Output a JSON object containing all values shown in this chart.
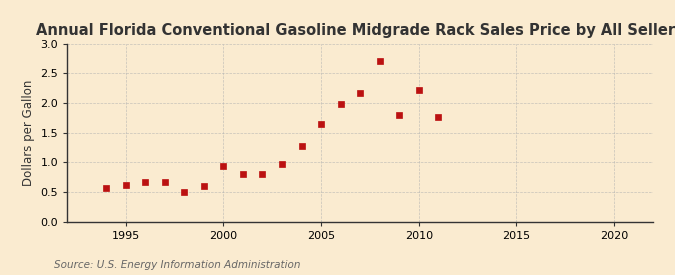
{
  "title": "Annual Florida Conventional Gasoline Midgrade Rack Sales Price by All Sellers",
  "ylabel": "Dollars per Gallon",
  "source": "Source: U.S. Energy Information Administration",
  "background_color": "#faebd0",
  "outer_background": "#f5e6c8",
  "years": [
    1994,
    1995,
    1996,
    1997,
    1998,
    1999,
    2000,
    2001,
    2002,
    2003,
    2004,
    2005,
    2006,
    2007,
    2008,
    2009,
    2010,
    2011
  ],
  "values": [
    0.57,
    0.62,
    0.67,
    0.67,
    0.5,
    0.61,
    0.93,
    0.81,
    0.8,
    0.98,
    1.28,
    1.65,
    1.99,
    2.17,
    2.7,
    1.8,
    2.21,
    1.76
  ],
  "marker_color": "#bb1111",
  "marker_size": 4,
  "xlim": [
    1992,
    2022
  ],
  "ylim": [
    0.0,
    3.0
  ],
  "xticks": [
    1995,
    2000,
    2005,
    2010,
    2015,
    2020
  ],
  "yticks": [
    0.0,
    0.5,
    1.0,
    1.5,
    2.0,
    2.5,
    3.0
  ],
  "title_fontsize": 10.5,
  "label_fontsize": 8.5,
  "tick_fontsize": 8,
  "source_fontsize": 7.5,
  "grid_color": "#b0b0b0",
  "spine_color": "#333333",
  "text_color": "#333333",
  "source_color": "#666666"
}
